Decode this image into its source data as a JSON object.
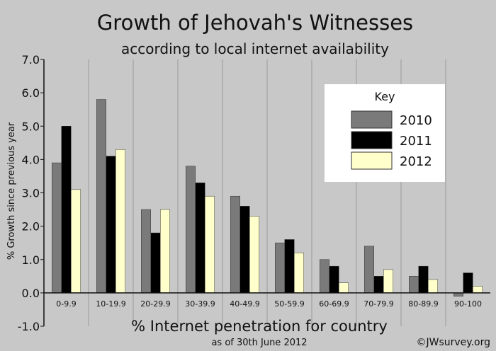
{
  "chart_data": {
    "type": "bar",
    "title": "Growth of Jehovah's Witnesses",
    "subtitle": "according to local internet availability",
    "xlabel": "% Internet penetration for country",
    "xlabel_note": "as of 30th June 2012",
    "ylabel": "% Growth since previous year",
    "ylim": [
      -1.0,
      7.0
    ],
    "yticks": [
      "-1.0",
      "0.0",
      "1.0",
      "2.0",
      "3.0",
      "4.0",
      "5.0",
      "6.0",
      "7.0"
    ],
    "grid": "vertical",
    "legend_position": "top-right",
    "legend_title": "Key",
    "credit": "©JWsurvey.org",
    "categories": [
      "0-9.9",
      "10-19.9",
      "20-29.9",
      "30-39.9",
      "40-49.9",
      "50-59.9",
      "60-69.9",
      "70-79.9",
      "80-89.9",
      "90-100"
    ],
    "series": [
      {
        "name": "2010",
        "color": "#7a7a7a",
        "values": [
          3.9,
          5.8,
          2.5,
          3.8,
          2.9,
          1.5,
          1.0,
          1.4,
          0.5,
          -0.1
        ]
      },
      {
        "name": "2011",
        "color": "#000000",
        "values": [
          5.0,
          4.1,
          1.8,
          3.3,
          2.6,
          1.6,
          0.8,
          0.5,
          0.8,
          0.6
        ]
      },
      {
        "name": "2012",
        "color": "#ffffcc",
        "values": [
          3.1,
          4.3,
          2.5,
          2.9,
          2.3,
          1.2,
          0.3,
          0.7,
          0.4,
          0.2
        ]
      }
    ]
  }
}
